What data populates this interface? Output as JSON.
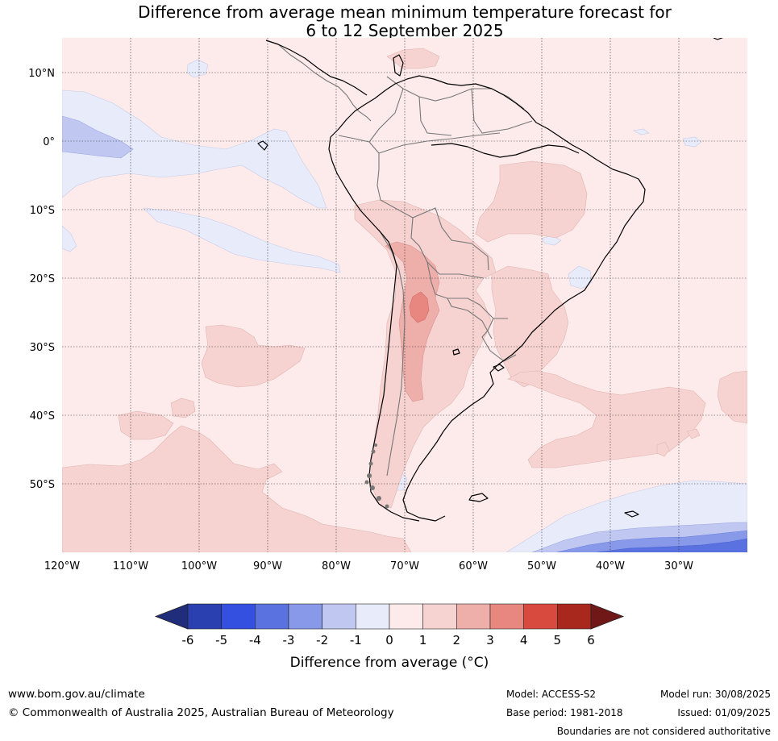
{
  "title": {
    "line1": "Difference from average mean minimum temperature forecast for",
    "line2": "6 to 12 September 2025"
  },
  "map": {
    "lon_labels": [
      "120°W",
      "110°W",
      "100°W",
      "90°W",
      "80°W",
      "70°W",
      "60°W",
      "50°W",
      "40°W",
      "30°W"
    ],
    "lat_labels": [
      "10°N",
      "0°",
      "10°S",
      "20°S",
      "30°S",
      "40°S",
      "50°S"
    ],
    "region": "South America"
  },
  "colorbar": {
    "ticks": [
      "-6",
      "-5",
      "-4",
      "-3",
      "-2",
      "-1",
      "0",
      "1",
      "2",
      "3",
      "4",
      "5",
      "6"
    ],
    "colors": [
      "#1f2d7a",
      "#2a3fb0",
      "#3350e0",
      "#5a72e0",
      "#8899ea",
      "#c0c8f2",
      "#e8ebfa",
      "#fcebea",
      "#f6d3d1",
      "#eeaeaa",
      "#e88680",
      "#d94a3e",
      "#a8281e",
      "#701818"
    ],
    "label": "Difference from average (°C)"
  },
  "footer": {
    "url": "www.bom.gov.au/climate",
    "copyright": "© Commonwealth of Australia 2025, Australian Bureau of Meteorology",
    "model": "Model: ACCESS-S2",
    "base_period": "Base period: 1981-2018",
    "model_run": "Model run: 30/08/2025",
    "issued": "Issued: 01/09/2025",
    "disclaimer": "Boundaries are not considered authoritative"
  }
}
